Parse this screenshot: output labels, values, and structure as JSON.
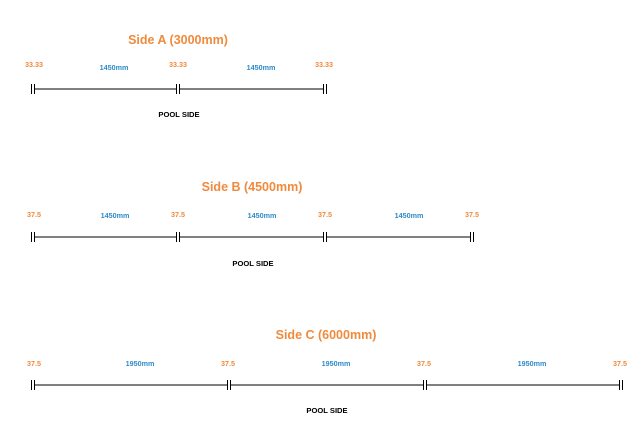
{
  "colors": {
    "title": "#f08a3c",
    "gap": "#f08a3c",
    "panel": "#2e8bc9",
    "line": "#000000",
    "pool": "#000000"
  },
  "sides": [
    {
      "id": "side-a",
      "title": "Side A (3000mm)",
      "gap_labels": [
        "33.33",
        "33.33",
        "33.33"
      ],
      "panel_labels": [
        "1450mm",
        "1450mm"
      ],
      "pool_label": "POOL SIDE"
    },
    {
      "id": "side-b",
      "title": "Side B (4500mm)",
      "gap_labels": [
        "37.5",
        "37.5",
        "37.5",
        "37.5"
      ],
      "panel_labels": [
        "1450mm",
        "1450mm",
        "1450mm"
      ],
      "pool_label": "POOL SIDE"
    },
    {
      "id": "side-c",
      "title": "Side C (6000mm)",
      "gap_labels": [
        "37.5",
        "37.5",
        "37.5",
        "37.5"
      ],
      "panel_labels": [
        "1950mm",
        "1950mm",
        "1950mm"
      ],
      "pool_label": "POOL SIDE"
    }
  ]
}
